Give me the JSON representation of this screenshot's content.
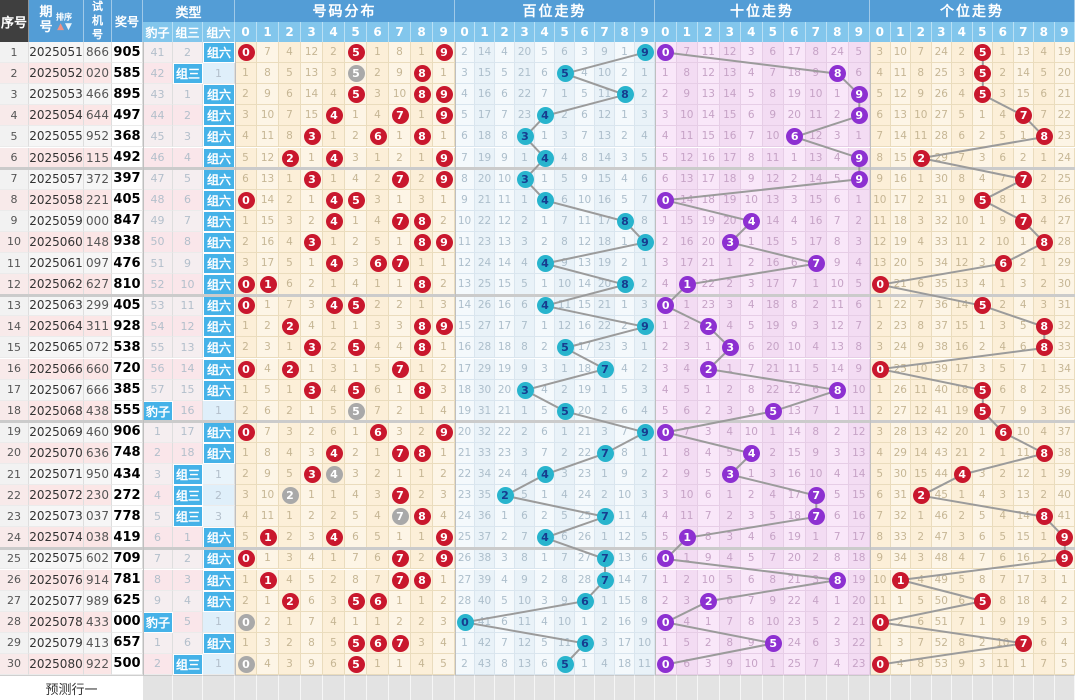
{
  "header": {
    "seq": "序号",
    "period": "期号",
    "sort": "排序",
    "sort_up": "▲",
    "sort_down": "▼",
    "test": "试机号",
    "prize": "奖号",
    "type_group": "类型",
    "type_cols": [
      "豹子",
      "组三",
      "组六"
    ],
    "sections": [
      "号码分布",
      "百位走势",
      "十位走势",
      "个位走势"
    ],
    "digits": [
      "0",
      "1",
      "2",
      "3",
      "4",
      "5",
      "6",
      "7",
      "8",
      "9"
    ]
  },
  "footer": {
    "label": "预测行一"
  },
  "rows": [
    {
      "seq": "1",
      "period": "2025051",
      "test": "866",
      "prize": "905"
    },
    {
      "seq": "2",
      "period": "2025052",
      "test": "020",
      "prize": "585"
    },
    {
      "seq": "3",
      "period": "2025053",
      "test": "466",
      "prize": "895"
    },
    {
      "seq": "4",
      "period": "2025054",
      "test": "644",
      "prize": "497"
    },
    {
      "seq": "5",
      "period": "2025055",
      "test": "952",
      "prize": "368"
    },
    {
      "seq": "6",
      "period": "2025056",
      "test": "115",
      "prize": "492"
    },
    {
      "seq": "7",
      "period": "2025057",
      "test": "372",
      "prize": "397"
    },
    {
      "seq": "8",
      "period": "2025058",
      "test": "221",
      "prize": "405"
    },
    {
      "seq": "9",
      "period": "2025059",
      "test": "000",
      "prize": "847"
    },
    {
      "seq": "10",
      "period": "2025060",
      "test": "148",
      "prize": "938"
    },
    {
      "seq": "11",
      "period": "2025061",
      "test": "097",
      "prize": "476"
    },
    {
      "seq": "12",
      "period": "2025062",
      "test": "627",
      "prize": "810"
    },
    {
      "seq": "13",
      "period": "2025063",
      "test": "299",
      "prize": "405"
    },
    {
      "seq": "14",
      "period": "2025064",
      "test": "311",
      "prize": "928"
    },
    {
      "seq": "15",
      "period": "2025065",
      "test": "072",
      "prize": "538"
    },
    {
      "seq": "16",
      "period": "2025066",
      "test": "660",
      "prize": "720"
    },
    {
      "seq": "17",
      "period": "2025067",
      "test": "666",
      "prize": "385"
    },
    {
      "seq": "18",
      "period": "2025068",
      "test": "438",
      "prize": "555"
    },
    {
      "seq": "19",
      "period": "2025069",
      "test": "460",
      "prize": "906"
    },
    {
      "seq": "20",
      "period": "2025070",
      "test": "636",
      "prize": "748"
    },
    {
      "seq": "21",
      "period": "2025071",
      "test": "950",
      "prize": "434"
    },
    {
      "seq": "22",
      "period": "2025072",
      "test": "230",
      "prize": "272"
    },
    {
      "seq": "23",
      "period": "2025073",
      "test": "037",
      "prize": "778"
    },
    {
      "seq": "24",
      "period": "2025074",
      "test": "038",
      "prize": "419"
    },
    {
      "seq": "25",
      "period": "2025075",
      "test": "602",
      "prize": "709"
    },
    {
      "seq": "26",
      "period": "2025076",
      "test": "914",
      "prize": "781"
    },
    {
      "seq": "27",
      "period": "2025077",
      "test": "989",
      "prize": "625"
    },
    {
      "seq": "28",
      "period": "2025078",
      "test": "433",
      "prize": "000"
    },
    {
      "seq": "29",
      "period": "2025079",
      "test": "413",
      "prize": "657"
    },
    {
      "seq": "30",
      "period": "2025080",
      "test": "922",
      "prize": "500"
    }
  ],
  "omission_seeds": {
    "distribution": [
      0,
      6,
      3,
      11,
      1,
      0,
      0,
      7,
      0,
      0
    ],
    "hundreds": [
      1,
      13,
      3,
      19,
      4,
      5,
      2,
      8,
      0,
      0
    ],
    "tens": [
      0,
      6,
      10,
      11,
      2,
      5,
      16,
      7,
      23,
      4
    ],
    "units": [
      2,
      9,
      6,
      23,
      1,
      0,
      0,
      12,
      3,
      18
    ],
    "baozi": 40,
    "zusan": 1,
    "zuliu": 0
  },
  "colors": {
    "header_blue": "#539dd6",
    "header_digit_blue": "#82c6ec",
    "header_dark": "#3f3f3f",
    "hit_badge": "#45b2e8",
    "red_circle": "#c9172d",
    "gray_circle": "#a9a9a9",
    "cyan_circle": "#28b4cd",
    "cyan_circle_text": "#173c8f",
    "purple_circle": "#8d30d1",
    "trend_line": "#9b9b9b"
  }
}
